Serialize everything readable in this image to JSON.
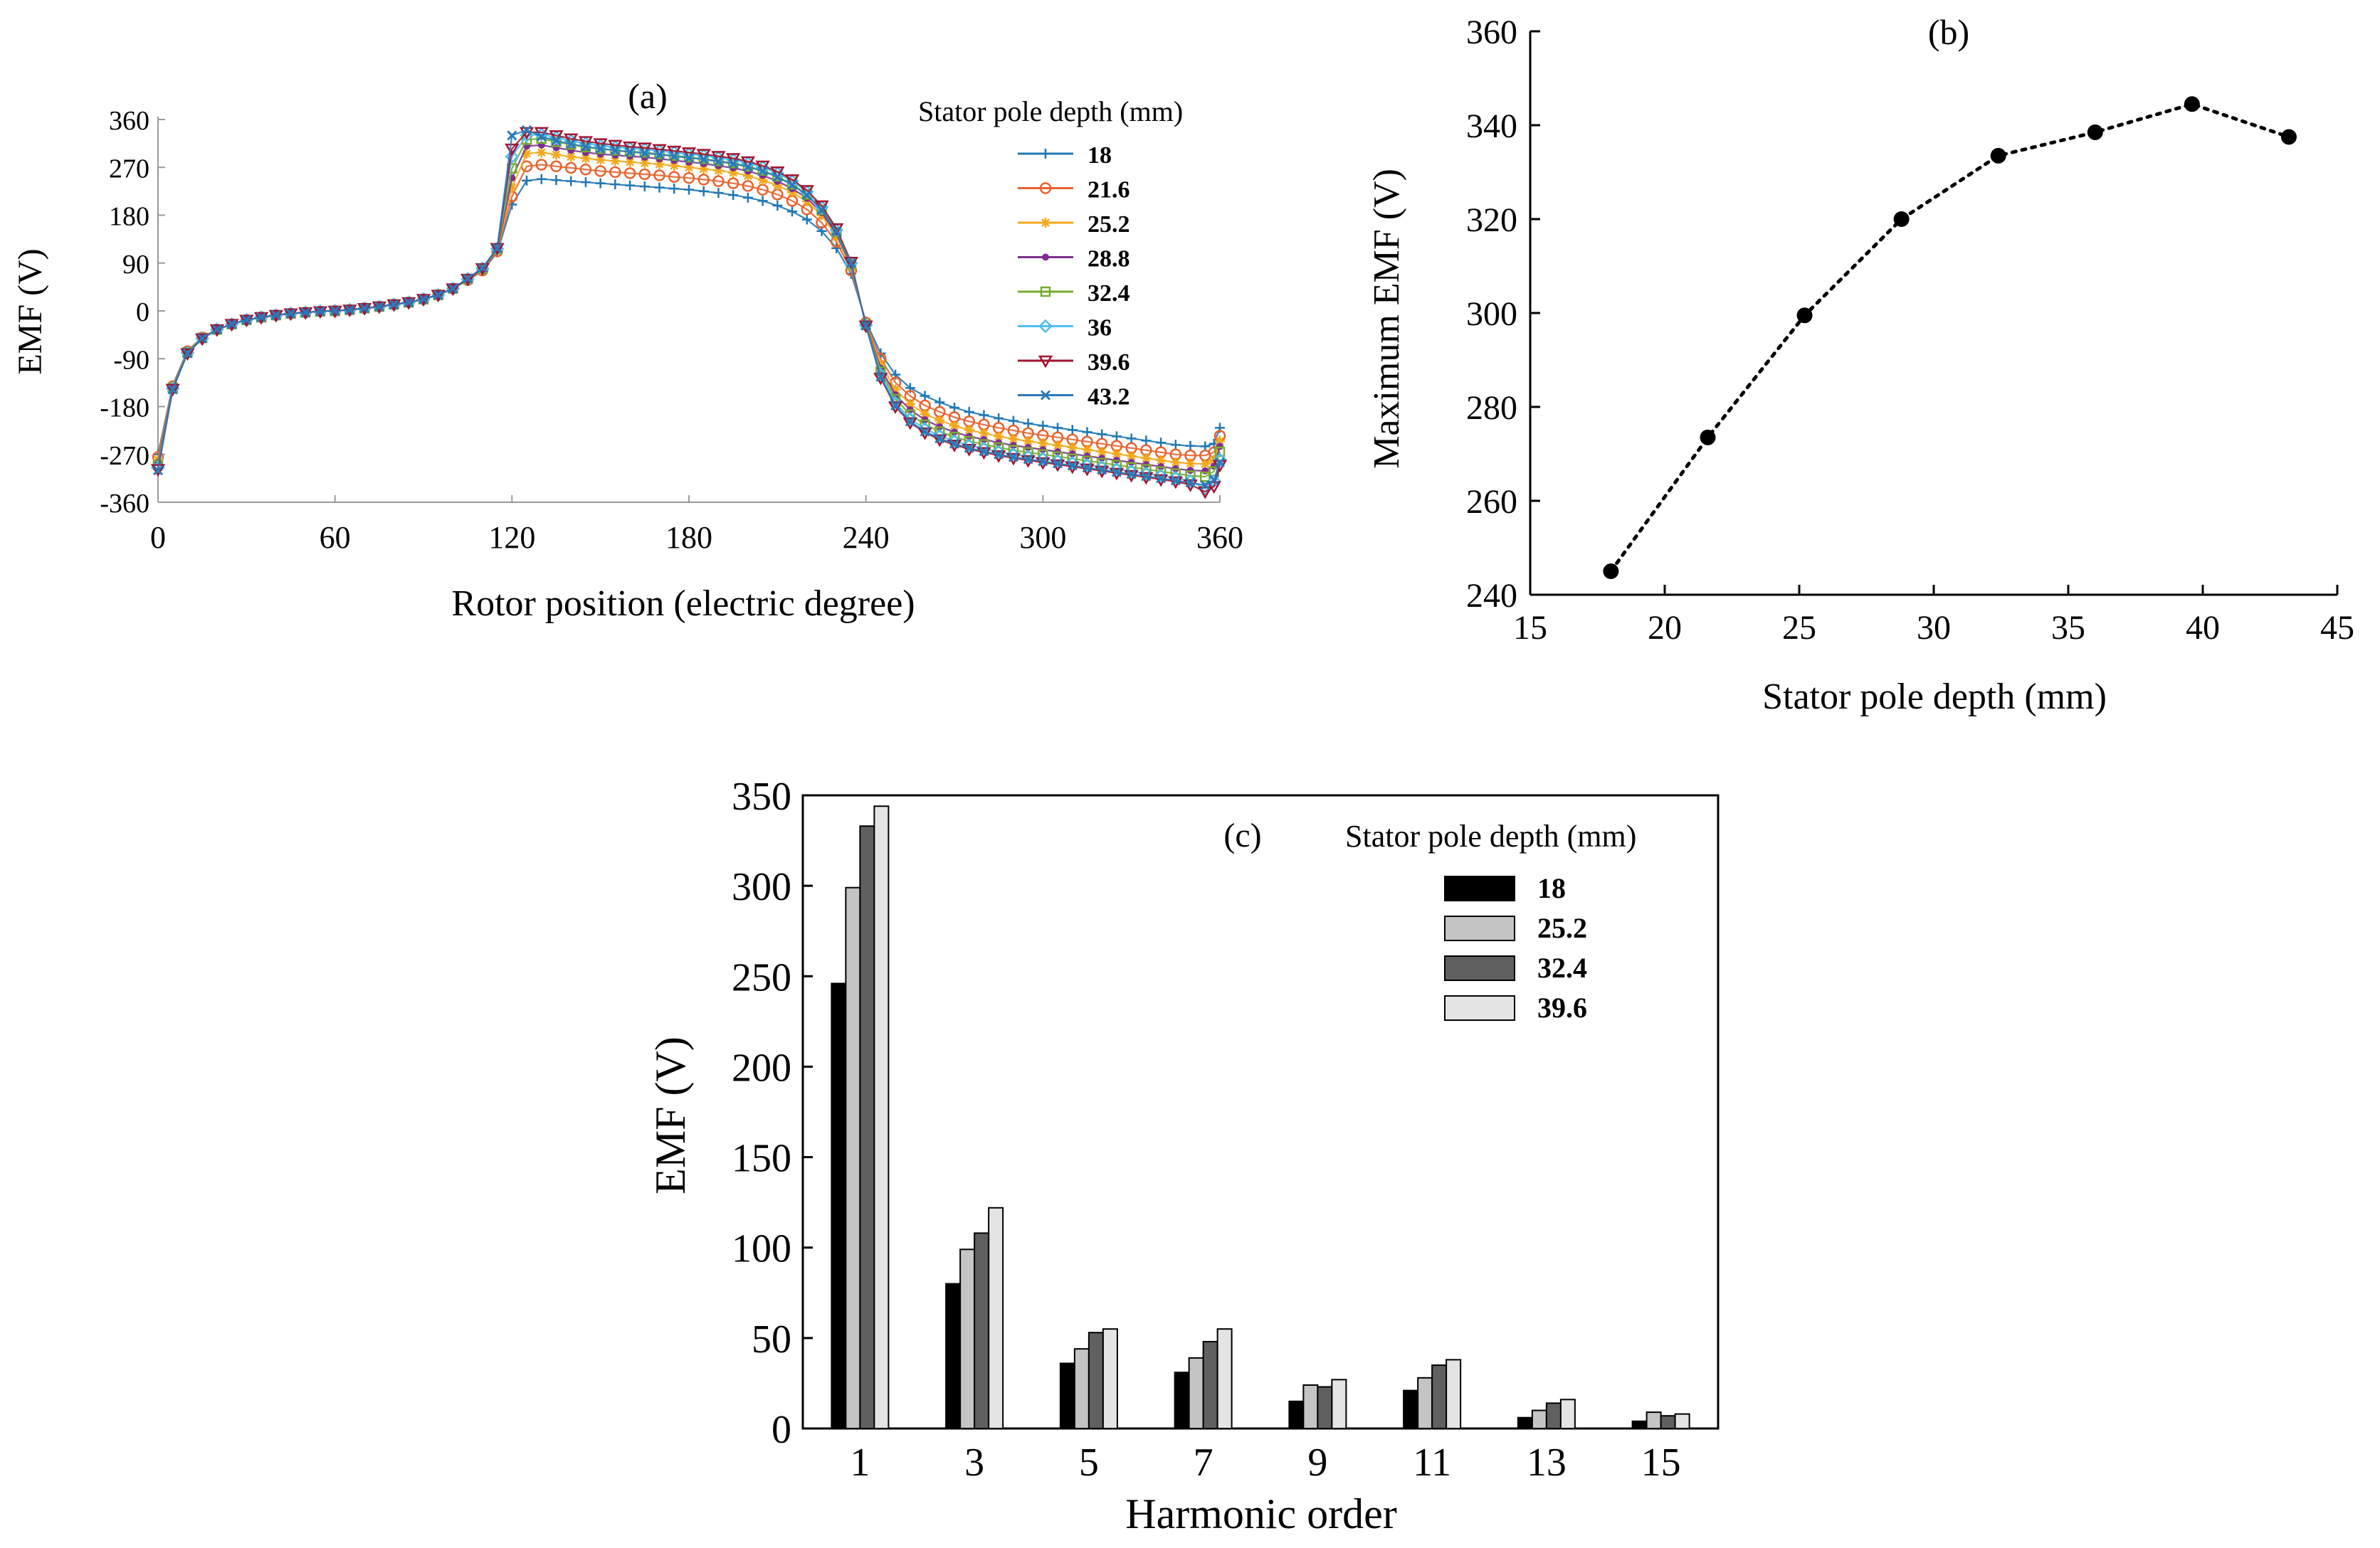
{
  "chart_data": [
    {
      "id": "a",
      "type": "line",
      "panel_label": "(a)",
      "xlabel": "Rotor position (electric degree)",
      "ylabel": "EMF (V)",
      "xlim": [
        0,
        360
      ],
      "ylim": [
        -360,
        360
      ],
      "xticks": [
        0,
        60,
        120,
        180,
        240,
        300,
        360
      ],
      "yticks": [
        -360,
        -270,
        -180,
        -90,
        0,
        90,
        180,
        270,
        360
      ],
      "grid": false,
      "legend_title": "Stator pole depth (mm)",
      "legend_position": "top-right",
      "x": [
        0,
        5,
        10,
        15,
        20,
        25,
        30,
        35,
        40,
        45,
        50,
        55,
        60,
        65,
        70,
        75,
        80,
        85,
        90,
        95,
        100,
        105,
        110,
        115,
        120,
        125,
        130,
        135,
        140,
        145,
        150,
        155,
        160,
        165,
        170,
        175,
        180,
        185,
        190,
        195,
        200,
        205,
        210,
        215,
        220,
        225,
        230,
        235,
        240,
        245,
        250,
        255,
        260,
        265,
        270,
        275,
        280,
        285,
        290,
        295,
        300,
        305,
        310,
        315,
        320,
        325,
        330,
        335,
        340,
        345,
        350,
        355,
        358,
        360
      ],
      "series": [
        {
          "name": "18",
          "color": "#1f77b4",
          "marker": "plus",
          "values": [
            -270,
            -140,
            -75,
            -50,
            -35,
            -25,
            -17,
            -12,
            -8,
            -5,
            -3,
            -1,
            0,
            2,
            5,
            8,
            12,
            16,
            22,
            30,
            42,
            58,
            75,
            110,
            200,
            245,
            248,
            246,
            244,
            242,
            240,
            238,
            236,
            234,
            232,
            230,
            228,
            225,
            222,
            218,
            213,
            207,
            198,
            187,
            172,
            150,
            118,
            70,
            -20,
            -80,
            -120,
            -145,
            -160,
            -172,
            -182,
            -190,
            -196,
            -202,
            -207,
            -212,
            -216,
            -220,
            -224,
            -228,
            -232,
            -236,
            -240,
            -244,
            -248,
            -252,
            -254,
            -255,
            -250,
            -220
          ]
        },
        {
          "name": "21.6",
          "color": "#e8622c",
          "marker": "circle",
          "values": [
            -275,
            -142,
            -76,
            -50,
            -35,
            -25,
            -17,
            -12,
            -8,
            -5,
            -3,
            -1,
            0,
            2,
            5,
            8,
            12,
            16,
            22,
            30,
            42,
            58,
            76,
            112,
            215,
            272,
            275,
            272,
            269,
            266,
            263,
            261,
            259,
            257,
            255,
            252,
            250,
            247,
            244,
            240,
            235,
            228,
            219,
            207,
            191,
            166,
            130,
            76,
            -22,
            -90,
            -135,
            -160,
            -178,
            -190,
            -200,
            -208,
            -214,
            -220,
            -225,
            -230,
            -234,
            -238,
            -242,
            -246,
            -250,
            -254,
            -258,
            -262,
            -266,
            -270,
            -272,
            -272,
            -266,
            -235
          ]
        },
        {
          "name": "25.2",
          "color": "#f2a81d",
          "marker": "star",
          "values": [
            -280,
            -143,
            -77,
            -51,
            -35,
            -25,
            -17,
            -12,
            -8,
            -5,
            -3,
            -1,
            0,
            2,
            5,
            8,
            12,
            16,
            22,
            30,
            42,
            59,
            77,
            114,
            232,
            296,
            298,
            294,
            290,
            287,
            284,
            282,
            280,
            278,
            276,
            273,
            270,
            267,
            264,
            260,
            254,
            246,
            236,
            223,
            206,
            180,
            140,
            82,
            -24,
            -100,
            -148,
            -175,
            -194,
            -206,
            -216,
            -224,
            -230,
            -236,
            -241,
            -245,
            -249,
            -253,
            -257,
            -261,
            -265,
            -269,
            -273,
            -277,
            -281,
            -285,
            -287,
            -288,
            -280,
            -245
          ]
        },
        {
          "name": "28.8",
          "color": "#7e2f8e",
          "marker": "dot",
          "values": [
            -285,
            -144,
            -78,
            -51,
            -35,
            -25,
            -17,
            -12,
            -8,
            -5,
            -3,
            -1,
            0,
            2,
            5,
            8,
            12,
            16,
            22,
            30,
            42,
            59,
            78,
            115,
            250,
            310,
            312,
            307,
            302,
            298,
            295,
            293,
            291,
            289,
            286,
            283,
            280,
            277,
            273,
            269,
            263,
            255,
            244,
            230,
            212,
            185,
            145,
            85,
            -25,
            -108,
            -158,
            -186,
            -205,
            -218,
            -228,
            -236,
            -242,
            -248,
            -253,
            -257,
            -261,
            -265,
            -269,
            -273,
            -277,
            -281,
            -285,
            -289,
            -293,
            -297,
            -300,
            -301,
            -292,
            -255
          ]
        },
        {
          "name": "32.4",
          "color": "#77ac30",
          "marker": "square",
          "values": [
            -290,
            -145,
            -78,
            -51,
            -35,
            -25,
            -17,
            -12,
            -8,
            -5,
            -3,
            -1,
            0,
            2,
            5,
            8,
            12,
            16,
            22,
            30,
            42,
            60,
            79,
            116,
            268,
            322,
            324,
            318,
            313,
            308,
            305,
            302,
            300,
            298,
            295,
            292,
            289,
            286,
            282,
            278,
            272,
            264,
            253,
            238,
            219,
            190,
            148,
            88,
            -26,
            -114,
            -166,
            -195,
            -214,
            -227,
            -237,
            -245,
            -251,
            -257,
            -262,
            -266,
            -270,
            -274,
            -278,
            -282,
            -286,
            -290,
            -294,
            -298,
            -302,
            -306,
            -310,
            -312,
            -302,
            -265
          ]
        },
        {
          "name": "36",
          "color": "#4dbeee",
          "marker": "diamond",
          "values": [
            -295,
            -146,
            -79,
            -52,
            -35,
            -25,
            -17,
            -12,
            -8,
            -5,
            -3,
            -1,
            0,
            2,
            5,
            8,
            12,
            16,
            22,
            30,
            42,
            60,
            80,
            117,
            290,
            330,
            332,
            326,
            320,
            315,
            311,
            308,
            306,
            304,
            301,
            298,
            295,
            292,
            288,
            284,
            278,
            270,
            259,
            244,
            224,
            195,
            152,
            90,
            -27,
            -120,
            -173,
            -203,
            -222,
            -235,
            -245,
            -253,
            -259,
            -265,
            -270,
            -274,
            -278,
            -282,
            -286,
            -290,
            -294,
            -298,
            -302,
            -306,
            -310,
            -314,
            -320,
            -335,
            -320,
            -280
          ]
        },
        {
          "name": "39.6",
          "color": "#a2142f",
          "marker": "triangle-down",
          "values": [
            -298,
            -147,
            -80,
            -52,
            -35,
            -25,
            -17,
            -12,
            -8,
            -5,
            -3,
            -1,
            0,
            2,
            5,
            8,
            12,
            16,
            22,
            30,
            42,
            60,
            80,
            118,
            305,
            336,
            336,
            330,
            324,
            319,
            315,
            312,
            309,
            307,
            304,
            301,
            298,
            295,
            291,
            287,
            281,
            273,
            262,
            247,
            227,
            198,
            155,
            92,
            -28,
            -126,
            -180,
            -210,
            -229,
            -242,
            -252,
            -260,
            -266,
            -272,
            -277,
            -281,
            -285,
            -289,
            -293,
            -297,
            -301,
            -305,
            -309,
            -313,
            -317,
            -321,
            -327,
            -340,
            -330,
            -290
          ]
        },
        {
          "name": "43.2",
          "color": "#2a7ab8",
          "marker": "x",
          "values": [
            -300,
            -148,
            -80,
            -52,
            -35,
            -25,
            -17,
            -12,
            -8,
            -5,
            -3,
            -1,
            0,
            2,
            5,
            8,
            12,
            16,
            22,
            30,
            42,
            61,
            81,
            118,
            330,
            340,
            328,
            320,
            314,
            309,
            305,
            302,
            299,
            297,
            294,
            291,
            288,
            285,
            281,
            277,
            271,
            263,
            252,
            237,
            218,
            190,
            150,
            90,
            -28,
            -124,
            -178,
            -208,
            -227,
            -240,
            -250,
            -258,
            -264,
            -270,
            -275,
            -279,
            -283,
            -287,
            -291,
            -295,
            -299,
            -303,
            -307,
            -311,
            -315,
            -319,
            -323,
            -328,
            -318,
            -285
          ]
        }
      ]
    },
    {
      "id": "b",
      "type": "line",
      "panel_label": "(b)",
      "xlabel": "Stator pole depth (mm)",
      "ylabel": "Maximum EMF (V)",
      "xlim": [
        15,
        45
      ],
      "ylim": [
        240,
        360
      ],
      "xticks": [
        15,
        20,
        25,
        30,
        35,
        40,
        45
      ],
      "yticks": [
        240,
        260,
        280,
        300,
        320,
        340,
        360
      ],
      "grid": false,
      "line_style": "dotted",
      "color": "#000000",
      "x": [
        18,
        21.6,
        25.2,
        28.8,
        32.4,
        36,
        39.6,
        43.2
      ],
      "values": [
        245,
        273.5,
        299.5,
        320,
        333.5,
        338.5,
        344.5,
        337.5
      ]
    },
    {
      "id": "c",
      "type": "bar",
      "panel_label": "(c)",
      "xlabel": "Harmonic order",
      "ylabel": "EMF (V)",
      "ylim": [
        0,
        350
      ],
      "yticks": [
        0,
        50,
        100,
        150,
        200,
        250,
        300,
        350
      ],
      "grid": false,
      "legend_title": "Stator pole depth (mm)",
      "legend_position": "top-right",
      "categories": [
        "1",
        "3",
        "5",
        "7",
        "9",
        "11",
        "13",
        "15"
      ],
      "series": [
        {
          "name": "18",
          "color": "#000000",
          "values": [
            246,
            80,
            36,
            31,
            15,
            21,
            6,
            4
          ]
        },
        {
          "name": "25.2",
          "color": "#c4c4c4",
          "values": [
            299,
            99,
            44,
            39,
            24,
            28,
            10,
            9
          ]
        },
        {
          "name": "32.4",
          "color": "#606060",
          "values": [
            333,
            108,
            53,
            48,
            23,
            35,
            14,
            7
          ]
        },
        {
          "name": "39.6",
          "color": "#e4e4e4",
          "values": [
            344,
            122,
            55,
            55,
            27,
            38,
            16,
            8
          ]
        }
      ]
    }
  ]
}
